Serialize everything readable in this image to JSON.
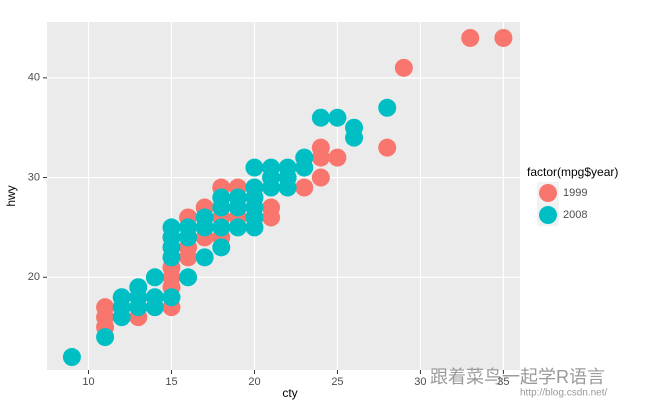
{
  "chart_data": {
    "type": "scatter",
    "x_label": "cty",
    "y_label": "hwy",
    "legend_title": "factor(mpg$year)",
    "watermark": "跟着菜鸟一起学R语言",
    "watermark_url": "http://blog.csdn.net/",
    "xlim": [
      7.5,
      36
    ],
    "ylim": [
      10.7,
      45.6
    ],
    "xticks": [
      10,
      15,
      20,
      25,
      30,
      35
    ],
    "yticks": [
      20,
      30,
      40
    ],
    "grid": true,
    "series": [
      {
        "name": "1999",
        "color": "#f8766d",
        "x": [
          11,
          11,
          11,
          13,
          14,
          15,
          15,
          15,
          15,
          16,
          16,
          16,
          17,
          17,
          18,
          18,
          18,
          19,
          19,
          20,
          21,
          21,
          23,
          24,
          24,
          24,
          25,
          28,
          29,
          33,
          35
        ],
        "values": [
          17,
          16,
          15,
          16,
          17,
          17,
          19,
          20,
          21,
          22,
          23,
          26,
          24,
          27,
          24,
          26,
          29,
          26,
          29,
          26,
          26,
          27,
          29,
          30,
          32,
          33,
          32,
          33,
          41,
          44,
          44
        ]
      },
      {
        "name": "2008",
        "color": "#00bfc4",
        "x": [
          9,
          11,
          12,
          12,
          12,
          13,
          13,
          13,
          14,
          14,
          14,
          15,
          15,
          15,
          15,
          15,
          16,
          16,
          16,
          17,
          17,
          17,
          18,
          18,
          18,
          18,
          19,
          19,
          19,
          20,
          20,
          20,
          20,
          20,
          20,
          21,
          21,
          21,
          22,
          22,
          22,
          23,
          23,
          24,
          25,
          26,
          26,
          28
        ],
        "values": [
          12,
          14,
          16,
          17,
          18,
          17,
          18,
          19,
          17,
          18,
          20,
          18,
          22,
          23,
          24,
          25,
          20,
          24,
          25,
          22,
          25,
          26,
          23,
          25,
          27,
          28,
          25,
          27,
          28,
          25,
          26,
          27,
          28,
          29,
          31,
          29,
          30,
          31,
          29,
          30,
          31,
          31,
          32,
          36,
          36,
          34,
          35,
          37
        ]
      }
    ]
  }
}
